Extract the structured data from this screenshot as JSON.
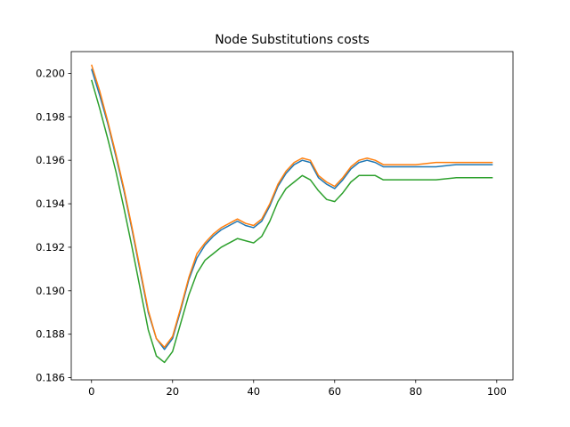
{
  "chart_data": {
    "type": "line",
    "title": "Node Substitutions costs",
    "xlabel": "",
    "ylabel": "",
    "xlim": [
      -5,
      104
    ],
    "ylim": [
      0.1859,
      0.201
    ],
    "xticks": [
      0,
      20,
      40,
      60,
      80,
      100
    ],
    "xtick_labels": [
      "0",
      "20",
      "40",
      "60",
      "80",
      "100"
    ],
    "yticks": [
      0.186,
      0.188,
      0.19,
      0.192,
      0.194,
      0.196,
      0.198,
      0.2
    ],
    "ytick_labels": [
      "0.186",
      "0.188",
      "0.190",
      "0.192",
      "0.194",
      "0.196",
      "0.198",
      "0.200"
    ],
    "grid": false,
    "legend": "none",
    "series": [
      {
        "color": "#1f77b4",
        "x": [
          0,
          2,
          4,
          6,
          8,
          10,
          12,
          14,
          16,
          18,
          20,
          22,
          24,
          26,
          28,
          30,
          32,
          34,
          36,
          38,
          40,
          42,
          44,
          46,
          48,
          50,
          52,
          54,
          56,
          58,
          60,
          62,
          64,
          66,
          68,
          70,
          72,
          74,
          76,
          78,
          80,
          85,
          90,
          95,
          99
        ],
        "values": [
          0.2002,
          0.199,
          0.1977,
          0.1962,
          0.1946,
          0.1928,
          0.1909,
          0.189,
          0.1878,
          0.1873,
          0.1878,
          0.1891,
          0.1905,
          0.1915,
          0.1921,
          0.1925,
          0.1928,
          0.193,
          0.1932,
          0.193,
          0.1929,
          0.1932,
          0.1939,
          0.1948,
          0.1954,
          0.1958,
          0.196,
          0.1959,
          0.1952,
          0.1949,
          0.1947,
          0.1951,
          0.1956,
          0.1959,
          0.196,
          0.1959,
          0.1957,
          0.1957,
          0.1957,
          0.1957,
          0.1957,
          0.1957,
          0.1958,
          0.1958,
          0.1958
        ]
      },
      {
        "color": "#ff7f0e",
        "x": [
          0,
          2,
          4,
          6,
          8,
          10,
          12,
          14,
          16,
          18,
          20,
          22,
          24,
          26,
          28,
          30,
          32,
          34,
          36,
          38,
          40,
          42,
          44,
          46,
          48,
          50,
          52,
          54,
          56,
          58,
          60,
          62,
          64,
          66,
          68,
          70,
          72,
          74,
          76,
          78,
          80,
          85,
          90,
          95,
          99
        ],
        "values": [
          0.2004,
          0.1992,
          0.1978,
          0.1963,
          0.1947,
          0.1929,
          0.191,
          0.1891,
          0.1878,
          0.1874,
          0.1879,
          0.1892,
          0.1906,
          0.1917,
          0.1922,
          0.1926,
          0.1929,
          0.1931,
          0.1933,
          0.1931,
          0.193,
          0.1933,
          0.194,
          0.1949,
          0.1955,
          0.1959,
          0.1961,
          0.196,
          0.1953,
          0.195,
          0.1948,
          0.1952,
          0.1957,
          0.196,
          0.1961,
          0.196,
          0.1958,
          0.1958,
          0.1958,
          0.1958,
          0.1958,
          0.1959,
          0.1959,
          0.1959,
          0.1959
        ]
      },
      {
        "color": "#2ca02c",
        "x": [
          0,
          2,
          4,
          6,
          8,
          10,
          12,
          14,
          16,
          18,
          20,
          22,
          24,
          26,
          28,
          30,
          32,
          34,
          36,
          38,
          40,
          42,
          44,
          46,
          48,
          50,
          52,
          54,
          56,
          58,
          60,
          62,
          64,
          66,
          68,
          70,
          72,
          74,
          76,
          78,
          80,
          85,
          90,
          95,
          99
        ],
        "values": [
          0.1997,
          0.1984,
          0.197,
          0.1955,
          0.1938,
          0.192,
          0.1901,
          0.1882,
          0.187,
          0.1867,
          0.1872,
          0.1885,
          0.1898,
          0.1908,
          0.1914,
          0.1917,
          0.192,
          0.1922,
          0.1924,
          0.1923,
          0.1922,
          0.1925,
          0.1932,
          0.1941,
          0.1947,
          0.195,
          0.1953,
          0.1951,
          0.1946,
          0.1942,
          0.1941,
          0.1945,
          0.195,
          0.1953,
          0.1953,
          0.1953,
          0.1951,
          0.1951,
          0.1951,
          0.1951,
          0.1951,
          0.1951,
          0.1952,
          0.1952,
          0.1952
        ]
      }
    ]
  }
}
